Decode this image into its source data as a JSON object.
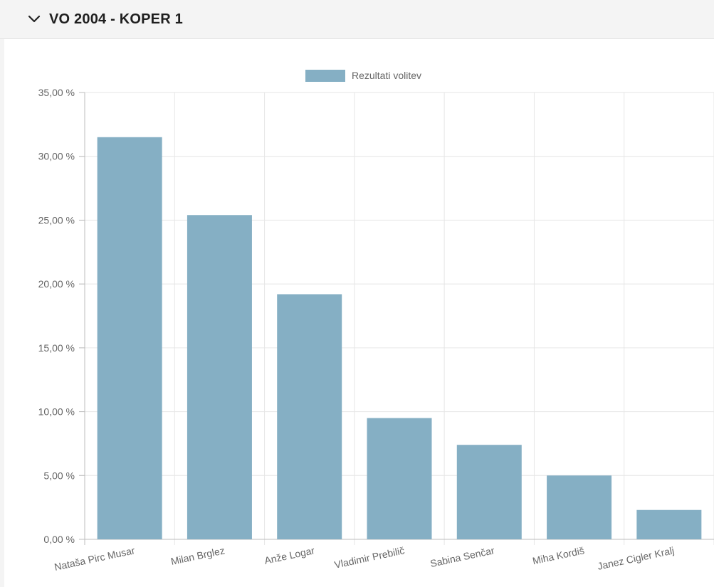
{
  "panel": {
    "title": "VO 2004 - KOPER 1",
    "toggle_icon": "chevron-down-icon"
  },
  "colors": {
    "bar": "#85afc4",
    "grid": "#e6e6e6",
    "axis": "#bdbdbd",
    "text": "#666666",
    "header_bg": "#f4f4f4"
  },
  "chart_data": {
    "type": "bar",
    "categories": [
      "Nataša Pirc Musar",
      "Milan Brglez",
      "Anže Logar",
      "Vladimir Prebilič",
      "Sabina Senčar",
      "Miha Kordiš",
      "Janez Cigler Kralj"
    ],
    "series": [
      {
        "name": "Rezultati volitev",
        "values": [
          31.5,
          25.4,
          19.2,
          9.5,
          7.4,
          5.0,
          2.3
        ]
      }
    ],
    "yticks": [
      "0,00 %",
      "5,00 %",
      "10,00 %",
      "15,00 %",
      "20,00 %",
      "25,00 %",
      "30,00 %",
      "35,00 %"
    ],
    "ylim": [
      0,
      35
    ],
    "grid": true,
    "legend_position": "top"
  }
}
